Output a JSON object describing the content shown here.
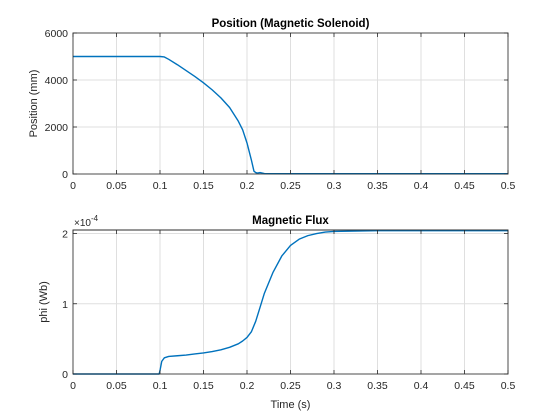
{
  "chart_data": [
    {
      "type": "line",
      "title": "Position (Magnetic Solenoid)",
      "xlabel": "",
      "ylabel": "Position (mm)",
      "xlim": [
        0,
        0.5
      ],
      "ylim": [
        0,
        6000
      ],
      "xticks": [
        0,
        0.05,
        0.1,
        0.15,
        0.2,
        0.25,
        0.3,
        0.35,
        0.4,
        0.45,
        0.5
      ],
      "xtick_labels": [
        "0",
        "0.05",
        "0.1",
        "0.15",
        "0.2",
        "0.25",
        "0.3",
        "0.35",
        "0.4",
        "0.45",
        "0.5"
      ],
      "yticks": [
        0,
        2000,
        4000,
        6000
      ],
      "ytick_labels": [
        "0",
        "2000",
        "4000",
        "6000"
      ],
      "grid": true,
      "color": "#0072bd",
      "series": [
        {
          "x": [
            0,
            0.1,
            0.105,
            0.11,
            0.12,
            0.13,
            0.14,
            0.15,
            0.16,
            0.17,
            0.18,
            0.19,
            0.195,
            0.2,
            0.205,
            0.208,
            0.21,
            0.212,
            0.215,
            0.22,
            0.25,
            0.3,
            0.4,
            0.5
          ],
          "y": [
            5000,
            5000,
            4980,
            4880,
            4650,
            4400,
            4150,
            3880,
            3580,
            3240,
            2830,
            2250,
            1880,
            1320,
            600,
            120,
            60,
            40,
            60,
            20,
            10,
            10,
            10,
            10
          ]
        }
      ]
    },
    {
      "type": "line",
      "title": "Magnetic Flux",
      "xlabel": "Time (s)",
      "ylabel": "phi (Wb)",
      "exponent_label": "×10",
      "exponent_power": "-4",
      "xlim": [
        0,
        0.5
      ],
      "ylim": [
        0,
        2.05
      ],
      "y_scale_factor": "1e-4",
      "xticks": [
        0,
        0.05,
        0.1,
        0.15,
        0.2,
        0.25,
        0.3,
        0.35,
        0.4,
        0.45,
        0.5
      ],
      "xtick_labels": [
        "0",
        "0.05",
        "0.1",
        "0.15",
        "0.2",
        "0.25",
        "0.3",
        "0.35",
        "0.4",
        "0.45",
        "0.5"
      ],
      "yticks": [
        0,
        1,
        2
      ],
      "ytick_labels": [
        "0",
        "1",
        "2"
      ],
      "grid": true,
      "color": "#0072bd",
      "series": [
        {
          "x": [
            0,
            0.099,
            0.1,
            0.102,
            0.105,
            0.11,
            0.12,
            0.13,
            0.14,
            0.15,
            0.16,
            0.17,
            0.18,
            0.19,
            0.195,
            0.2,
            0.205,
            0.21,
            0.215,
            0.22,
            0.23,
            0.24,
            0.25,
            0.26,
            0.27,
            0.28,
            0.29,
            0.3,
            0.35,
            0.4,
            0.5
          ],
          "y": [
            0,
            0,
            0.05,
            0.18,
            0.23,
            0.25,
            0.26,
            0.27,
            0.285,
            0.3,
            0.32,
            0.345,
            0.38,
            0.43,
            0.47,
            0.52,
            0.6,
            0.75,
            0.95,
            1.15,
            1.45,
            1.68,
            1.83,
            1.92,
            1.97,
            2.0,
            2.02,
            2.03,
            2.04,
            2.04,
            2.04
          ]
        }
      ]
    }
  ]
}
